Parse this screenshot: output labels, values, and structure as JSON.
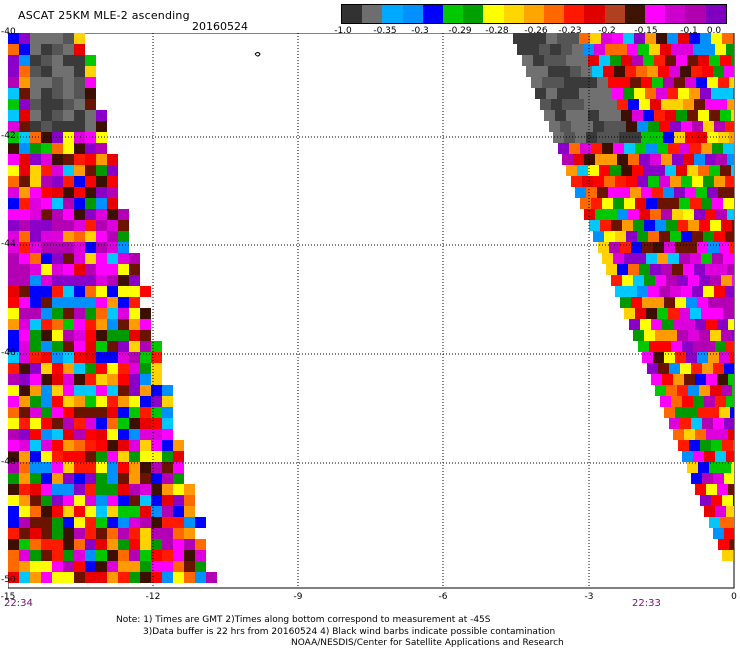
{
  "header": {
    "title": "ASCAT 25KM MLE-2 ascending",
    "date": "20160524"
  },
  "colorbar": {
    "labels": [
      "-1.0",
      "-0.35",
      "-0.3",
      "-0.29",
      "-0.28",
      "-0.26",
      "-0.23",
      "-0.2",
      "-0.15",
      "-0.1",
      "0.0"
    ],
    "colors": [
      "#323232",
      "#6e6e6e",
      "#00a8ff",
      "#0090ff",
      "#0000ff",
      "#00c800",
      "#00a000",
      "#ffff00",
      "#ffd700",
      "#ffa500",
      "#ff6800",
      "#ff1800",
      "#e00000",
      "#b04020",
      "#3c1400",
      "#ff00ff",
      "#cc00cc",
      "#b000b0",
      "#8000c0"
    ]
  },
  "axes": {
    "lon_labels": [
      "-15",
      "-12",
      "-9",
      "-6",
      "-3",
      "0"
    ],
    "lat_labels": [
      "-40",
      "-42",
      "-44",
      "-46",
      "-48",
      "-50"
    ]
  },
  "swaths": {
    "left_time": "22:34",
    "right_time": "22:33"
  },
  "legend_marks": {
    "palette": [
      "#ff1a00",
      "#ff0000",
      "#e80000",
      "#ff6a00",
      "#ff9a00",
      "#ffff00",
      "#ffd200",
      "#ff00ff",
      "#dd00dd",
      "#b400b4",
      "#8b00c8",
      "#6a1400",
      "#3c0f00",
      "#00c800",
      "#009a00",
      "#00c8ff",
      "#0090ff",
      "#0000ff",
      "#3a3a3a",
      "#555555",
      "#707070"
    ]
  },
  "notes": {
    "line1": "Note: 1) Times are GMT 2)Times along bottom correspond to measurement at -45S",
    "line2": "3)Data buffer is 22 hrs from 20160524 4) Black wind barbs indicate possible contamination",
    "line3": "NOAA/NESDIS/Center for Satellite Applications and Research"
  }
}
